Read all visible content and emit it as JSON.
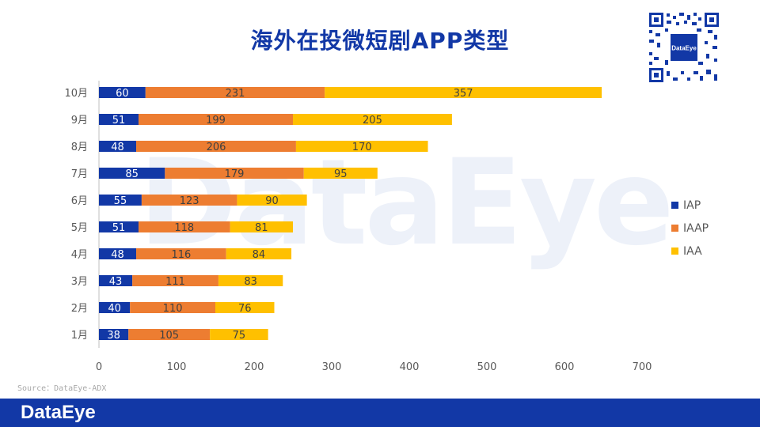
{
  "title": "海外在投微短剧APP类型",
  "watermark": "DataEye",
  "source": "Source：DataEye-ADX",
  "footer_logo": "DataEye",
  "qr_label": "DataEye",
  "colors": {
    "IAP": "#1238a6",
    "IAAP": "#ed7d31",
    "IAA": "#ffc000",
    "brand": "#1238a6"
  },
  "chart_data": {
    "type": "bar",
    "orientation": "horizontal",
    "stacked": true,
    "title": "海外在投微短剧APP类型",
    "categories": [
      "10月",
      "9月",
      "8月",
      "7月",
      "6月",
      "5月",
      "4月",
      "3月",
      "2月",
      "1月"
    ],
    "series": [
      {
        "name": "IAP",
        "values": [
          60,
          51,
          48,
          85,
          55,
          51,
          48,
          43,
          40,
          38
        ]
      },
      {
        "name": "IAAP",
        "values": [
          231,
          199,
          206,
          179,
          123,
          118,
          116,
          111,
          110,
          105
        ]
      },
      {
        "name": "IAA",
        "values": [
          357,
          205,
          170,
          95,
          90,
          81,
          84,
          83,
          76,
          75
        ]
      }
    ],
    "xlim": [
      0,
      700
    ],
    "xticks": [
      0,
      100,
      200,
      300,
      400,
      500,
      600,
      700
    ],
    "legend_position": "right",
    "grid": false
  }
}
